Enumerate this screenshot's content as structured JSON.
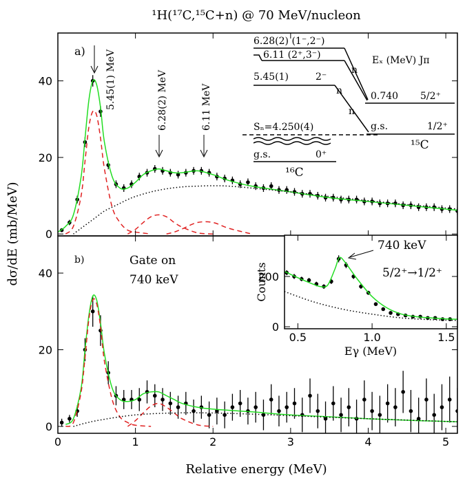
{
  "chart_data": [
    {
      "type": "line",
      "title": "¹H(¹⁷C,¹⁵C+n) @ 70 MeV/nucleon",
      "ylabel": "dσ/dE (mb/MeV)",
      "panel_label": "a)",
      "xlim": [
        0,
        5.15
      ],
      "ylim": [
        -0.5,
        52.5
      ],
      "xticks": [
        0,
        1,
        2,
        3,
        4,
        5
      ],
      "yticks": [
        0,
        20,
        40
      ],
      "series": [
        {
          "style": "points",
          "color": "#000000",
          "x": [
            0.05,
            0.15,
            0.25,
            0.35,
            0.45,
            0.55,
            0.65,
            0.75,
            0.85,
            0.95,
            1.05,
            1.15,
            1.25,
            1.35,
            1.45,
            1.55,
            1.65,
            1.75,
            1.85,
            1.95,
            2.05,
            2.15,
            2.25,
            2.35,
            2.45,
            2.55,
            2.65,
            2.75,
            2.85,
            2.95,
            3.05,
            3.15,
            3.25,
            3.35,
            3.45,
            3.55,
            3.65,
            3.75,
            3.85,
            3.95,
            4.05,
            4.15,
            4.25,
            4.35,
            4.45,
            4.55,
            4.65,
            4.75,
            4.85,
            4.95,
            5.05,
            5.15
          ],
          "values": [
            1,
            3,
            9,
            24,
            40,
            32,
            18,
            13,
            12,
            13,
            15,
            16,
            17,
            16.5,
            16,
            15.5,
            16,
            16.5,
            16.5,
            16,
            15,
            14.5,
            14,
            13,
            13.5,
            12.5,
            12,
            12.5,
            11.5,
            11.5,
            11,
            10.5,
            10.5,
            10,
            9.5,
            9.5,
            9,
            9,
            9,
            8.5,
            8.5,
            8,
            8,
            8,
            7.5,
            7.5,
            7,
            7,
            7,
            6.5,
            6.5,
            6
          ],
          "errors": [
            0.5,
            0.7,
            1,
            1.3,
            1.5,
            1.4,
            1.1,
            1,
            1,
            1,
            1,
            1,
            1,
            1,
            1,
            1,
            1,
            1,
            1,
            1,
            1,
            1,
            1,
            1,
            1,
            1,
            1,
            1,
            1,
            1,
            1,
            1,
            1,
            1,
            1,
            1,
            1,
            1,
            1,
            1,
            1,
            1,
            1,
            1,
            1,
            1,
            1,
            1,
            1,
            1,
            1,
            1
          ]
        },
        {
          "style": "solid",
          "color": "#22dd22",
          "x": [
            0,
            0.1,
            0.2,
            0.3,
            0.35,
            0.4,
            0.45,
            0.5,
            0.55,
            0.6,
            0.7,
            0.8,
            0.9,
            1.0,
            1.1,
            1.2,
            1.3,
            1.4,
            1.5,
            1.6,
            1.8,
            2.0,
            2.2,
            2.5,
            3.0,
            3.5,
            4.0,
            4.5,
            5.0,
            5.15
          ],
          "values": [
            0.5,
            2,
            5,
            15,
            25,
            35,
            40,
            39,
            33,
            24,
            15,
            12,
            12,
            13.5,
            15.5,
            16.5,
            17,
            16.5,
            16,
            16,
            16.5,
            15.5,
            14,
            12.5,
            11,
            9.5,
            8.5,
            7.5,
            6.5,
            6.2
          ]
        },
        {
          "style": "dashed",
          "color": "#e02020",
          "x": [
            0.1,
            0.2,
            0.3,
            0.35,
            0.4,
            0.45,
            0.5,
            0.55,
            0.6,
            0.7,
            0.8,
            0.9,
            1.0,
            1.2
          ],
          "values": [
            0,
            2,
            10,
            19,
            28,
            32,
            31,
            25,
            17,
            7,
            3,
            1,
            0.5,
            0
          ]
        },
        {
          "style": "dashed",
          "color": "#e02020",
          "x": [
            0.9,
            1.0,
            1.1,
            1.2,
            1.3,
            1.4,
            1.5,
            1.6,
            1.8,
            2.0
          ],
          "values": [
            0,
            1.2,
            3,
            4.5,
            5,
            4.5,
            3,
            1.8,
            0.3,
            0
          ]
        },
        {
          "style": "dashed",
          "color": "#e02020",
          "x": [
            1.4,
            1.5,
            1.6,
            1.8,
            2.0,
            2.2,
            2.5
          ],
          "values": [
            0,
            0.5,
            1.3,
            3,
            3,
            1.5,
            0
          ]
        },
        {
          "style": "dotted",
          "color": "#000000",
          "x": [
            0.2,
            0.3,
            0.4,
            0.5,
            0.6,
            0.7,
            0.8,
            0.9,
            1.0,
            1.2,
            1.4,
            1.6,
            1.8,
            2.0,
            2.2,
            2.5,
            3.0,
            3.5,
            4.0,
            4.5,
            5.0,
            5.15
          ],
          "values": [
            0,
            1.5,
            3,
            4.5,
            6,
            7,
            8,
            9,
            9.8,
            11,
            11.8,
            12.3,
            12.5,
            12.6,
            12.5,
            12,
            11,
            9.8,
            8.7,
            7.7,
            6.8,
            6.5
          ]
        }
      ],
      "annotations": [
        "5.45(1) MeV",
        "6.28(2) MeV",
        "6.11 MeV"
      ],
      "level_scheme": {
        "c16_levels": [
          "6.28(2) (1⁻,2⁻)",
          "6.11 (2⁺,3⁻)",
          "5.45(1)",
          "2⁻"
        ],
        "threshold": "Sₙ=4.250(4)",
        "c16_ground": [
          "g.s.",
          "0⁺"
        ],
        "c16_label": "¹⁶C",
        "neutron": "n",
        "header": "Eₓ (MeV) Jπ",
        "c15_levels": [
          [
            "0.740",
            "5/2⁺"
          ],
          [
            "g.s.",
            "1/2⁺"
          ]
        ],
        "c15_label": "¹⁵C"
      }
    },
    {
      "type": "line",
      "xlabel": "Relative energy (MeV)",
      "panel_label": "b)",
      "xlim": [
        0,
        5.15
      ],
      "ylim": [
        -1.8,
        49.7
      ],
      "xticks": [
        0,
        1,
        2,
        3,
        4,
        5
      ],
      "yticks": [
        0,
        20,
        40
      ],
      "series": [
        {
          "style": "points",
          "color": "#000000",
          "x": [
            0.05,
            0.15,
            0.25,
            0.35,
            0.45,
            0.55,
            0.65,
            0.75,
            0.85,
            0.95,
            1.05,
            1.15,
            1.25,
            1.35,
            1.45,
            1.55,
            1.65,
            1.75,
            1.85,
            1.95,
            2.05,
            2.15,
            2.25,
            2.35,
            2.45,
            2.55,
            2.65,
            2.75,
            2.85,
            2.95,
            3.05,
            3.15,
            3.25,
            3.35,
            3.45,
            3.55,
            3.65,
            3.75,
            3.85,
            3.95,
            4.05,
            4.15,
            4.25,
            4.35,
            4.45,
            4.55,
            4.65,
            4.75,
            4.85,
            4.95,
            5.05,
            5.15
          ],
          "values": [
            1,
            2,
            4,
            20,
            30,
            25,
            14,
            8,
            7,
            7,
            7,
            9,
            8,
            7,
            6,
            5,
            6,
            4,
            5,
            3,
            4,
            3,
            5,
            6,
            4,
            5,
            3,
            7,
            4,
            5,
            6,
            3,
            8,
            4,
            2,
            6,
            3,
            5,
            2,
            7,
            4,
            3,
            6,
            5,
            9,
            4,
            2,
            7,
            3,
            5,
            7,
            4
          ],
          "errors": [
            1,
            1,
            1.5,
            3,
            4,
            4,
            3,
            2.5,
            2.5,
            2.5,
            3,
            3,
            3,
            3,
            3,
            3,
            3,
            3,
            3,
            3.5,
            3.5,
            3.5,
            3.5,
            3.5,
            3.5,
            4,
            4,
            4,
            4,
            4,
            4,
            4.5,
            4.5,
            4.5,
            4.5,
            4.5,
            4.5,
            5,
            5,
            5,
            5,
            5,
            5,
            5,
            5.5,
            5.5,
            5.5,
            5.5,
            5.5,
            6,
            6,
            6
          ]
        },
        {
          "style": "solid",
          "color": "#22dd22",
          "x": [
            0.1,
            0.2,
            0.3,
            0.35,
            0.4,
            0.45,
            0.5,
            0.55,
            0.6,
            0.7,
            0.8,
            0.9,
            1.0,
            1.1,
            1.2,
            1.3,
            1.4,
            1.5,
            1.6,
            1.8,
            2.0,
            2.5,
            3.0,
            3.5,
            4.0,
            4.5,
            5.0,
            5.15
          ],
          "values": [
            0.5,
            2,
            10,
            20,
            29,
            34,
            33,
            27,
            19,
            10,
            7,
            6.5,
            7,
            8.5,
            9,
            9,
            8,
            7,
            6,
            5,
            4.5,
            3.8,
            3,
            2.5,
            2,
            1.6,
            1.3,
            1.2
          ]
        },
        {
          "style": "dashed",
          "color": "#e02020",
          "x": [
            0.1,
            0.2,
            0.3,
            0.35,
            0.4,
            0.45,
            0.5,
            0.55,
            0.6,
            0.7,
            0.8,
            0.9,
            1.0,
            1.2
          ],
          "values": [
            0,
            1,
            9,
            18,
            28,
            33,
            32,
            26,
            17,
            7,
            2.5,
            1,
            0.3,
            0
          ]
        },
        {
          "style": "dashed",
          "color": "#e02020",
          "x": [
            0.9,
            1.0,
            1.1,
            1.2,
            1.3,
            1.4,
            1.5,
            1.6,
            1.8,
            2.0
          ],
          "values": [
            0,
            1.5,
            3.5,
            5.3,
            6,
            5,
            3.5,
            2,
            0.4,
            0
          ]
        },
        {
          "style": "dotted",
          "color": "#000000",
          "x": [
            0.2,
            0.5,
            1.0,
            1.5,
            2.0,
            2.5,
            3.0,
            4.0,
            5.0,
            5.15
          ],
          "values": [
            0,
            1.5,
            3,
            3.5,
            3.5,
            3.2,
            2.8,
            2,
            1.3,
            1.2
          ]
        }
      ],
      "annotations": [
        "Gate on",
        "740 keV"
      ]
    },
    {
      "type": "line",
      "xlabel": "Eγ (MeV)",
      "ylabel": "Counts",
      "xlim": [
        0.41,
        1.575
      ],
      "ylim": [
        -8,
        364
      ],
      "xticks": [
        0.5,
        {
          "value": 1,
          "label": "1.0"
        },
        1.5
      ],
      "yticks": [
        0,
        200
      ],
      "series": [
        {
          "style": "points",
          "color": "#000000",
          "x": [
            0.425,
            0.475,
            0.525,
            0.575,
            0.625,
            0.675,
            0.725,
            0.775,
            0.825,
            0.875,
            0.925,
            0.975,
            1.025,
            1.075,
            1.125,
            1.175,
            1.225,
            1.275,
            1.325,
            1.375,
            1.425,
            1.475,
            1.525
          ],
          "values": [
            215,
            200,
            190,
            185,
            170,
            160,
            180,
            270,
            245,
            200,
            160,
            135,
            90,
            70,
            55,
            50,
            45,
            40,
            40,
            35,
            35,
            30,
            30
          ],
          "errors": [
            10,
            10,
            9,
            9,
            9,
            9,
            10,
            14,
            12,
            10,
            9,
            8,
            7,
            6,
            6,
            5,
            5,
            5,
            5,
            5,
            5,
            5,
            5
          ]
        },
        {
          "style": "solid",
          "color": "#22dd22",
          "x": [
            0.41,
            0.5,
            0.6,
            0.65,
            0.7,
            0.75,
            0.78,
            0.82,
            0.9,
            1.0,
            1.1,
            1.2,
            1.3,
            1.4,
            1.5,
            1.575
          ],
          "values": [
            220,
            195,
            170,
            160,
            165,
            230,
            275,
            255,
            190,
            120,
            75,
            50,
            40,
            35,
            31,
            30
          ]
        },
        {
          "style": "dotted",
          "color": "#000000",
          "x": [
            0.41,
            0.6,
            0.8,
            1.0,
            1.2,
            1.4,
            1.575
          ],
          "values": [
            140,
            100,
            70,
            50,
            35,
            28,
            25
          ]
        }
      ],
      "annotations": [
        "740 keV",
        "5/2⁺→1/2⁺"
      ]
    }
  ]
}
